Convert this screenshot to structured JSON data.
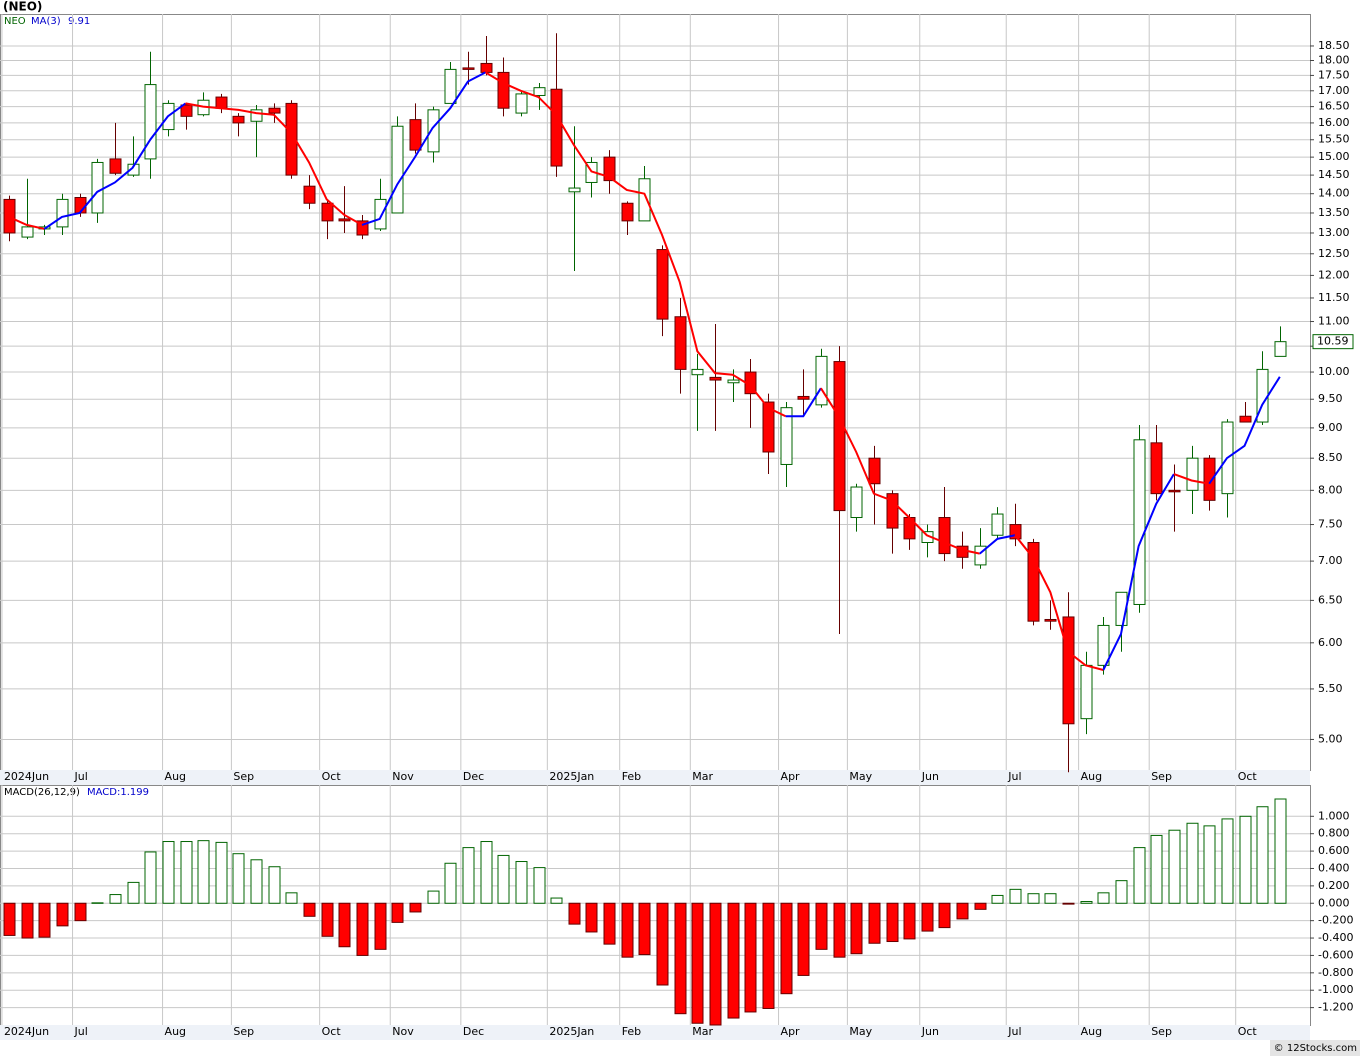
{
  "chart_data": [
    {
      "type": "candlestick",
      "title": "(NEO)",
      "symbol": "NEO",
      "log": true,
      "grid": true,
      "up_color": "#006400",
      "down_color": "#ff0000",
      "xlim": [
        -0.51,
        73.71
      ],
      "xticks": [
        {
          "value": -0.4,
          "label": "2024Jun"
        },
        {
          "value": 3.6,
          "label": "Jul"
        },
        {
          "value": 8.7,
          "label": "Aug"
        },
        {
          "value": 12.6,
          "label": "Sep"
        },
        {
          "value": 17.6,
          "label": "Oct"
        },
        {
          "value": 21.6,
          "label": "Nov"
        },
        {
          "value": 25.6,
          "label": "Dec"
        },
        {
          "value": 30.5,
          "label": "2025Jan"
        },
        {
          "value": 34.6,
          "label": "Feb"
        },
        {
          "value": 38.6,
          "label": "Mar"
        },
        {
          "value": 43.6,
          "label": "Apr"
        },
        {
          "value": 47.5,
          "label": "May"
        },
        {
          "value": 51.6,
          "label": "Jun"
        },
        {
          "value": 56.5,
          "label": "Jul"
        },
        {
          "value": 60.6,
          "label": "Aug"
        },
        {
          "value": 64.6,
          "label": "Sep"
        },
        {
          "value": 69.5,
          "label": "Oct"
        }
      ],
      "ylim": [
        4.72,
        19.65
      ],
      "yticks": [
        {
          "value": 5.0,
          "label": "5.00"
        },
        {
          "value": 5.5,
          "label": "5.50"
        },
        {
          "value": 6.0,
          "label": "6.00"
        },
        {
          "value": 6.5,
          "label": "6.50"
        },
        {
          "value": 7.0,
          "label": "7.00"
        },
        {
          "value": 7.5,
          "label": "7.50"
        },
        {
          "value": 8.0,
          "label": "8.00"
        },
        {
          "value": 8.5,
          "label": "8.50"
        },
        {
          "value": 9.0,
          "label": "9.00"
        },
        {
          "value": 9.5,
          "label": "9.50"
        },
        {
          "value": 10.0,
          "label": "10.00"
        },
        {
          "value": 10.5,
          "label": "10.50"
        },
        {
          "value": 11.0,
          "label": "11.00"
        },
        {
          "value": 11.5,
          "label": "11.50"
        },
        {
          "value": 12.0,
          "label": "12.00"
        },
        {
          "value": 12.5,
          "label": "12.50"
        },
        {
          "value": 13.0,
          "label": "13.00"
        },
        {
          "value": 13.5,
          "label": "13.50"
        },
        {
          "value": 14.0,
          "label": "14.00"
        },
        {
          "value": 14.5,
          "label": "14.50"
        },
        {
          "value": 15.0,
          "label": "15.00"
        },
        {
          "value": 15.5,
          "label": "15.50"
        },
        {
          "value": 16.0,
          "label": "16.00"
        },
        {
          "value": 16.5,
          "label": "16.50"
        },
        {
          "value": 17.0,
          "label": "17.00"
        },
        {
          "value": 17.5,
          "label": "17.50"
        },
        {
          "value": 18.0,
          "label": "18.00"
        },
        {
          "value": 18.5,
          "label": "18.50"
        }
      ],
      "open": [
        13.85,
        12.9,
        13.1,
        13.15,
        13.9,
        13.5,
        14.95,
        14.5,
        14.95,
        15.8,
        16.55,
        16.25,
        16.8,
        16.2,
        16.05,
        16.45,
        16.6,
        14.2,
        13.75,
        13.35,
        13.3,
        13.1,
        13.5,
        16.1,
        15.15,
        16.6,
        17.75,
        17.9,
        17.6,
        16.3,
        16.85,
        17.05,
        14.05,
        14.3,
        15.0,
        13.75,
        13.3,
        12.6,
        11.1,
        9.95,
        9.9,
        9.8,
        10.0,
        9.45,
        8.4,
        9.55,
        9.4,
        10.2,
        7.6,
        8.5,
        7.95,
        7.6,
        7.25,
        7.6,
        7.2,
        6.95,
        7.35,
        7.5,
        7.25,
        6.27,
        6.3,
        5.2,
        5.75,
        6.2,
        6.45,
        8.75,
        8.0,
        8.0,
        8.5,
        7.95,
        9.2,
        9.1,
        10.3
      ],
      "high": [
        13.95,
        14.4,
        13.2,
        14.0,
        14.0,
        14.95,
        16.0,
        15.6,
        18.3,
        16.7,
        16.6,
        16.95,
        16.9,
        16.3,
        16.55,
        16.6,
        16.7,
        14.5,
        13.85,
        14.2,
        13.45,
        14.4,
        16.2,
        16.6,
        16.5,
        17.95,
        18.3,
        18.85,
        18.1,
        17.0,
        17.25,
        18.95,
        15.9,
        15.0,
        15.2,
        13.8,
        14.75,
        12.7,
        11.5,
        10.35,
        10.95,
        10.05,
        10.25,
        9.6,
        9.45,
        10.05,
        10.45,
        10.5,
        8.1,
        8.7,
        8.0,
        7.65,
        7.5,
        8.05,
        7.4,
        7.45,
        7.75,
        7.8,
        7.3,
        6.5,
        6.6,
        5.9,
        6.3,
        6.6,
        9.05,
        9.05,
        8.4,
        8.7,
        8.55,
        9.15,
        9.45,
        10.4,
        10.9
      ],
      "low": [
        12.8,
        12.85,
        12.95,
        12.95,
        13.4,
        13.25,
        14.5,
        14.45,
        14.4,
        15.6,
        15.8,
        16.2,
        16.3,
        15.6,
        15.0,
        16.0,
        14.4,
        13.6,
        12.85,
        13.0,
        12.85,
        13.05,
        13.5,
        15.1,
        14.85,
        16.6,
        17.2,
        17.5,
        16.2,
        16.2,
        16.4,
        14.45,
        12.1,
        13.9,
        14.0,
        12.95,
        13.3,
        10.7,
        9.6,
        8.95,
        8.95,
        9.45,
        9.0,
        8.25,
        8.05,
        9.2,
        9.35,
        6.1,
        7.4,
        7.5,
        7.1,
        7.15,
        7.05,
        7.0,
        6.9,
        6.9,
        7.3,
        7.2,
        6.2,
        6.15,
        4.7,
        5.05,
        5.65,
        5.9,
        6.35,
        7.85,
        7.4,
        7.65,
        7.7,
        7.6,
        9.1,
        9.05,
        10.3
      ],
      "close": [
        13.0,
        13.15,
        13.15,
        13.85,
        13.5,
        14.85,
        14.55,
        14.8,
        17.2,
        16.6,
        16.2,
        16.7,
        16.45,
        16.0,
        16.4,
        16.3,
        14.5,
        13.75,
        13.3,
        13.3,
        12.95,
        13.85,
        15.9,
        15.2,
        16.4,
        17.7,
        17.7,
        17.6,
        16.45,
        16.9,
        17.1,
        14.75,
        14.15,
        14.85,
        14.35,
        13.3,
        14.4,
        11.05,
        10.05,
        10.05,
        9.85,
        9.85,
        9.6,
        8.6,
        9.35,
        9.5,
        10.3,
        7.7,
        8.05,
        8.1,
        7.45,
        7.3,
        7.4,
        7.1,
        7.05,
        7.2,
        7.65,
        7.3,
        6.25,
        6.25,
        5.15,
        5.75,
        6.2,
        6.6,
        8.8,
        7.95,
        7.98,
        8.5,
        7.85,
        9.1,
        9.1,
        10.05,
        10.59
      ],
      "ma": {
        "name": "MA(3)",
        "up_color": "#0000ff",
        "down_color": "#ff0000",
        "values": [
          13.4,
          13.2,
          13.1,
          13.4,
          13.5,
          14.05,
          14.3,
          14.7,
          15.5,
          16.2,
          16.6,
          16.5,
          16.45,
          16.4,
          16.3,
          16.25,
          15.7,
          14.85,
          13.85,
          13.45,
          13.2,
          13.35,
          14.25,
          15.0,
          15.85,
          16.45,
          17.3,
          17.6,
          17.25,
          17.0,
          16.8,
          16.25,
          15.35,
          14.6,
          14.45,
          14.1,
          14.0,
          12.95,
          11.85,
          10.4,
          9.98,
          9.95,
          9.75,
          9.35,
          9.2,
          9.2,
          9.7,
          9.2,
          8.6,
          7.95,
          7.85,
          7.6,
          7.35,
          7.25,
          7.15,
          7.1,
          7.3,
          7.35,
          7.05,
          6.6,
          5.9,
          5.75,
          5.7,
          6.1,
          7.2,
          7.8,
          8.25,
          8.15,
          8.1,
          8.5,
          8.7,
          9.4,
          9.91
        ]
      }
    },
    {
      "type": "bar",
      "title": "MACD(26,12,9)",
      "macd_label": "MACD:1.199",
      "grid": true,
      "up_color": "#006400",
      "down_color": "#ff0000",
      "ylim": [
        -1.4,
        1.36
      ],
      "yticks": [
        {
          "value": -1.2,
          "label": "-1.200"
        },
        {
          "value": -1.0,
          "label": "-1.000"
        },
        {
          "value": -0.8,
          "label": "-0.800"
        },
        {
          "value": -0.6,
          "label": "-0.600"
        },
        {
          "value": -0.4,
          "label": "-0.400"
        },
        {
          "value": -0.2,
          "label": "-0.200"
        },
        {
          "value": 0,
          "label": "0.000"
        },
        {
          "value": 0.2,
          "label": "0.200"
        },
        {
          "value": 0.4,
          "label": "0.400"
        },
        {
          "value": 0.6,
          "label": "0.600"
        },
        {
          "value": 0.8,
          "label": "0.800"
        },
        {
          "value": 1.0,
          "label": "1.000"
        }
      ],
      "values": [
        -0.37,
        -0.4,
        -0.39,
        -0.26,
        -0.2,
        0.005,
        0.1,
        0.24,
        0.59,
        0.71,
        0.71,
        0.72,
        0.7,
        0.57,
        0.5,
        0.42,
        0.12,
        -0.15,
        -0.38,
        -0.5,
        -0.6,
        -0.53,
        -0.22,
        -0.1,
        0.14,
        0.46,
        0.64,
        0.71,
        0.55,
        0.48,
        0.41,
        0.06,
        -0.24,
        -0.33,
        -0.47,
        -0.62,
        -0.59,
        -0.94,
        -1.27,
        -1.38,
        -1.4,
        -1.32,
        -1.25,
        -1.21,
        -1.04,
        -0.83,
        -0.53,
        -0.62,
        -0.58,
        -0.46,
        -0.44,
        -0.41,
        -0.32,
        -0.28,
        -0.18,
        -0.07,
        0.09,
        0.16,
        0.11,
        0.11,
        -0.01,
        0.02,
        0.12,
        0.26,
        0.64,
        0.78,
        0.84,
        0.92,
        0.89,
        0.97,
        1.0,
        1.11,
        1.199
      ]
    }
  ],
  "footer": "© 12Stocks.com"
}
